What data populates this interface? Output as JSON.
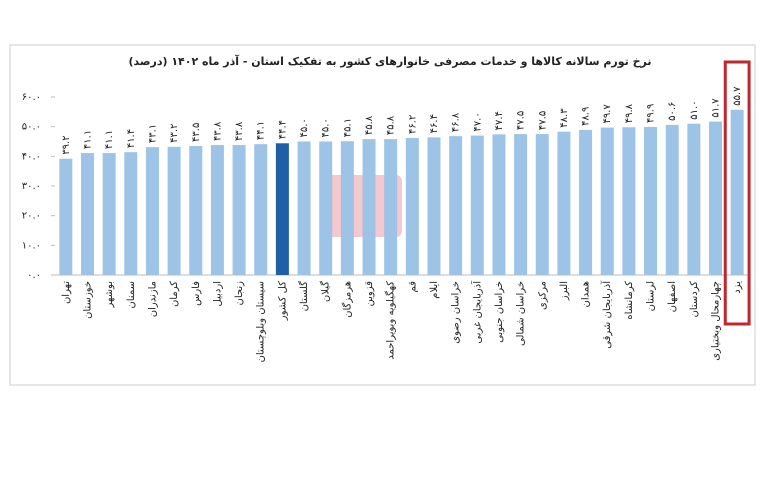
{
  "chart_data": {
    "type": "bar",
    "title": "نرخ تورم سالانه کالاها و خدمات مصرفی خانوارهای کشور به تفکیک استان - آذر ماه ۱۴۰۲ (درصد)",
    "categories": [
      "تهران",
      "خوزستان",
      "بوشهر",
      "سمنان",
      "مازندران",
      "کرمان",
      "فارس",
      "اردبیل",
      "زنجان",
      "سیستان وبلوچستان",
      "کل کشور",
      "گلستان",
      "گیلان",
      "هرمزگان",
      "قزوین",
      "کهگیلویه وبویراحمد",
      "قم",
      "ایلام",
      "خراسان رضوی",
      "آذربایجان غربی",
      "خراسان جنوبی",
      "خراسان شمالی",
      "مرکزی",
      "البرز",
      "همدان",
      "آذربایجان شرقی",
      "کرمانشاه",
      "لرستان",
      "اصفهان",
      "کردستان",
      "چهارمحال وبختیاری",
      "یزد"
    ],
    "values": [
      39.2,
      41.1,
      41.1,
      41.4,
      43.1,
      43.2,
      43.5,
      43.8,
      43.8,
      44.1,
      44.4,
      45.0,
      45.0,
      45.1,
      45.8,
      45.8,
      46.2,
      46.4,
      46.8,
      47.0,
      47.4,
      47.5,
      47.5,
      48.3,
      48.9,
      49.7,
      49.8,
      49.9,
      50.6,
      51.0,
      51.7,
      55.7
    ],
    "value_labels": [
      "۳۹.۲",
      "۴۱.۱",
      "۴۱.۱",
      "۴۱.۴",
      "۴۳.۱",
      "۴۳.۲",
      "۴۳.۵",
      "۴۳.۸",
      "۴۳.۸",
      "۴۴.۱",
      "۴۴.۴",
      "۴۵.۰",
      "۴۵.۰",
      "۴۵.۱",
      "۴۵.۸",
      "۴۵.۸",
      "۴۶.۲",
      "۴۶.۴",
      "۴۶.۸",
      "۴۷.۰",
      "۴۷.۴",
      "۴۷.۵",
      "۴۷.۵",
      "۴۸.۳",
      "۴۸.۹",
      "۴۹.۷",
      "۴۹.۸",
      "۴۹.۹",
      "۵۰.۶",
      "۵۱.۰",
      "۵۱.۷",
      "۵۵.۷"
    ],
    "colors": [
      "#9dc3e6",
      "#9dc3e6",
      "#9dc3e6",
      "#9dc3e6",
      "#9dc3e6",
      "#9dc3e6",
      "#9dc3e6",
      "#9dc3e6",
      "#9dc3e6",
      "#9dc3e6",
      "#1f5fa6",
      "#9dc3e6",
      "#9dc3e6",
      "#9dc3e6",
      "#9dc3e6",
      "#9dc3e6",
      "#9dc3e6",
      "#9dc3e6",
      "#9dc3e6",
      "#9dc3e6",
      "#9dc3e6",
      "#9dc3e6",
      "#9dc3e6",
      "#9dc3e6",
      "#9dc3e6",
      "#9dc3e6",
      "#9dc3e6",
      "#9dc3e6",
      "#9dc3e6",
      "#9dc3e6",
      "#9dc3e6",
      "#9dc3e6"
    ],
    "ylim": [
      0,
      60
    ],
    "yticks": [
      {
        "value": 0,
        "label": "۰.۰"
      },
      {
        "value": 10,
        "label": "۱۰.۰"
      },
      {
        "value": 20,
        "label": "۲۰.۰"
      },
      {
        "value": 30,
        "label": "۳۰.۰"
      },
      {
        "value": 40,
        "label": "۴۰.۰"
      },
      {
        "value": 50,
        "label": "۵۰.۰"
      },
      {
        "value": 60,
        "label": "۶۰.۰"
      }
    ],
    "grid": false
  }
}
